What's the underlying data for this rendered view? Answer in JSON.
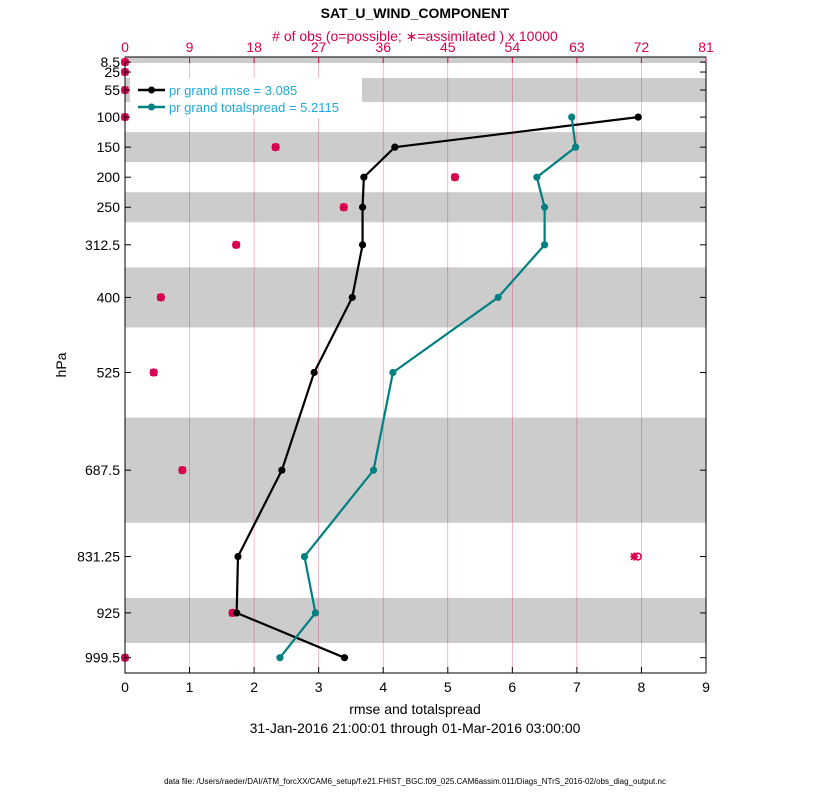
{
  "chart_data": {
    "type": "line",
    "title": "SAT_U_WIND_COMPONENT",
    "top_axis_label": "# of obs (o=possible; ∗=assimilated ) x 10000",
    "top_axis_ticks": [
      "0",
      "9",
      "18",
      "27",
      "36",
      "45",
      "54",
      "63",
      "72",
      "81"
    ],
    "top_axis_range": [
      0,
      81
    ],
    "xlabel": "rmse and totalspread",
    "x_ticks": [
      "0",
      "1",
      "2",
      "3",
      "4",
      "5",
      "6",
      "7",
      "8",
      "9"
    ],
    "xlim": [
      0,
      9
    ],
    "ylabel": "hPa",
    "y_ticks": [
      "8.5",
      "25",
      "55",
      "100",
      "150",
      "200",
      "250",
      "312.5",
      "400",
      "525",
      "687.5",
      "831.25",
      "925",
      "999.5"
    ],
    "levels": [
      8.5,
      25,
      55,
      100,
      150,
      200,
      250,
      312.5,
      400,
      525,
      687.5,
      831.25,
      925,
      999.5
    ],
    "ylim": [
      0,
      1025
    ],
    "shaded_bands": [
      [
        0,
        10
      ],
      [
        35,
        75
      ],
      [
        125,
        175
      ],
      [
        225,
        275
      ],
      [
        350,
        450
      ],
      [
        600,
        775
      ],
      [
        900,
        975
      ]
    ],
    "date_range": "31-Jan-2016 21:00:01 through 01-Mar-2016 03:00:00",
    "footer": "data file: /Users/raeder/DAI/ATM_forcXX/CAM6_setup/f.e21.FHIST_BGC.f09_025.CAM6assim.011/Diags_NTrS_2016-02/obs_diag_output.nc",
    "series": [
      {
        "name": "pr grand rmse = 3.085",
        "color": "#000000",
        "points": [
          [
            7.95,
            100
          ],
          [
            4.18,
            150
          ],
          [
            3.7,
            200
          ],
          [
            3.68,
            250
          ],
          [
            3.68,
            312.5
          ],
          [
            3.52,
            400
          ],
          [
            2.93,
            525
          ],
          [
            2.43,
            687.5
          ],
          [
            1.75,
            831.25
          ],
          [
            1.73,
            925
          ],
          [
            3.4,
            999.5
          ]
        ]
      },
      {
        "name": "pr grand totalspread = 5.2115",
        "color": "#008080",
        "points": [
          [
            6.92,
            100
          ],
          [
            6.98,
            150
          ],
          [
            6.38,
            200
          ],
          [
            6.5,
            250
          ],
          [
            6.5,
            312.5
          ],
          [
            5.78,
            400
          ],
          [
            4.15,
            525
          ],
          [
            3.85,
            687.5
          ],
          [
            2.78,
            831.25
          ],
          [
            2.95,
            925
          ],
          [
            2.4,
            999.5
          ]
        ]
      }
    ],
    "obs_possible": [
      {
        "level": 8.5,
        "count": 0
      },
      {
        "level": 25,
        "count": 0
      },
      {
        "level": 55,
        "count": 0
      },
      {
        "level": 100,
        "count": 0
      },
      {
        "level": 150,
        "count": 21
      },
      {
        "level": 200,
        "count": 46
      },
      {
        "level": 250,
        "count": 30.5
      },
      {
        "level": 312.5,
        "count": 15.5
      },
      {
        "level": 400,
        "count": 5
      },
      {
        "level": 525,
        "count": 4
      },
      {
        "level": 687.5,
        "count": 8
      },
      {
        "level": 831.25,
        "count": 71.5
      },
      {
        "level": 925,
        "count": 15
      },
      {
        "level": 999.5,
        "count": 0
      }
    ],
    "obs_assimilated": [
      {
        "level": 8.5,
        "count": 0
      },
      {
        "level": 25,
        "count": 0
      },
      {
        "level": 55,
        "count": 0
      },
      {
        "level": 100,
        "count": 0
      },
      {
        "level": 150,
        "count": 21
      },
      {
        "level": 200,
        "count": 46
      },
      {
        "level": 250,
        "count": 30.5
      },
      {
        "level": 312.5,
        "count": 15.5
      },
      {
        "level": 400,
        "count": 5
      },
      {
        "level": 525,
        "count": 4
      },
      {
        "level": 687.5,
        "count": 8
      },
      {
        "level": 831.25,
        "count": 71
      },
      {
        "level": 925,
        "count": 15
      },
      {
        "level": 999.5,
        "count": 0
      }
    ],
    "colors": {
      "obs": "#d6004f",
      "legend_text": "#1ea7dd",
      "band": "#cccccc",
      "grid": "#d6004f"
    }
  }
}
